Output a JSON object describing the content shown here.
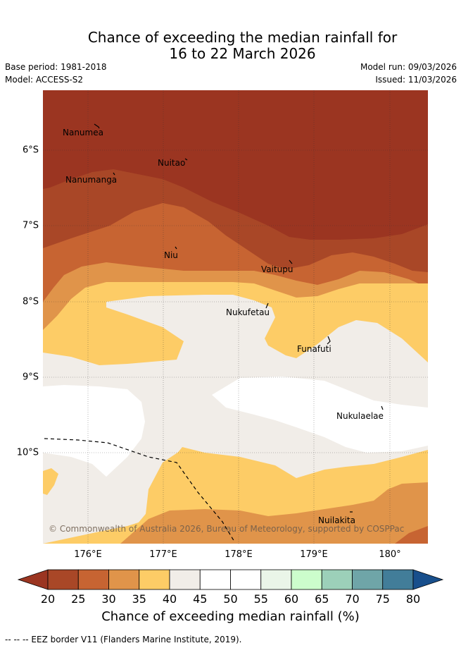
{
  "header": {
    "title_line1": "Chance of exceeding the median rainfall for",
    "title_line2": "16 to 22 March 2026",
    "base_period": "Base period: 1981-2018",
    "model": "Model: ACCESS-S2",
    "model_run": "Model run: 09/03/2026",
    "issued": "Issued: 11/03/2026"
  },
  "map": {
    "lat_labels": [
      "6°S",
      "7°S",
      "8°S",
      "9°S",
      "10°S"
    ],
    "lon_labels": [
      "176°E",
      "177°E",
      "178°E",
      "179°E",
      "180°"
    ],
    "places": {
      "nanumea": "Nanumea",
      "nuitao": "Nuitao",
      "nanumanga": "Nanumanga",
      "niu": "Niu",
      "vaitupu": "Vaitupu",
      "nukufetau": "Nukufetau",
      "funafuti": "Funafuti",
      "nukulaelae": "Nukulaelae",
      "nuilakita": "Nuilakita"
    },
    "copyright": "© Commonwealth of Australia 2026, Bureau of Meteorology, supported by COSPPac"
  },
  "colorbar": {
    "ticks": [
      "20",
      "25",
      "30",
      "35",
      "40",
      "45",
      "50",
      "55",
      "60",
      "65",
      "70",
      "75",
      "80"
    ],
    "colors": [
      "#a94727",
      "#c76432",
      "#e0944a",
      "#fdcc66",
      "#f1ede8",
      "#ffffff",
      "#ffffff",
      "#eaf5e8",
      "#ccfdcc",
      "#9cd0b9",
      "#6fa5a8",
      "#427d99"
    ],
    "under_color": "#9b3521",
    "over_color": "#184f8c",
    "label": "Chance of exceeding median rainfall (%)"
  },
  "footnote": "-- -- -- EEZ border V11 (Flanders Marine Institute, 2019)."
}
